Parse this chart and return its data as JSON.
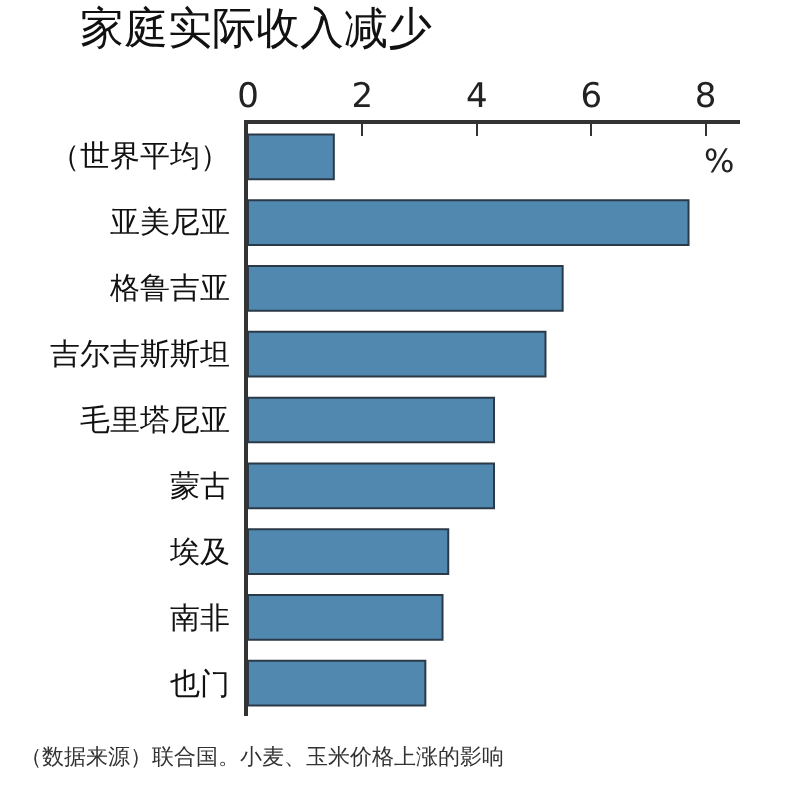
{
  "chart_data": {
    "type": "bar",
    "orientation": "horizontal",
    "title": "家庭实际收入减少",
    "xlabel": "%",
    "categories": [
      "（世界平均）",
      "亚美尼亚",
      "格鲁吉亚",
      "吉尔吉斯斯坦",
      "毛里塔尼亚",
      "蒙古",
      "埃及",
      "南非",
      "也门"
    ],
    "values": [
      1.5,
      7.7,
      5.5,
      5.2,
      4.3,
      4.3,
      3.5,
      3.4,
      3.1
    ],
    "color": "#5088b0",
    "xlim": [
      0,
      8.6
    ],
    "xticks": [
      0,
      2,
      4,
      6,
      8
    ],
    "grid": false,
    "legend": false,
    "annotations": [
      "（数据来源）联合国。小麦、玉米价格上涨的影响"
    ]
  }
}
